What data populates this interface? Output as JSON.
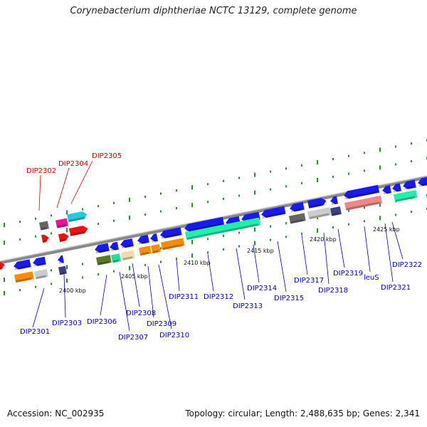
{
  "title": "Corynebacterium diphtheriae NCTC 13129, complete genome",
  "footer": {
    "accession": "Accession: NC_002935",
    "summary": "Topology: circular; Length: 2,488,635 bp; Genes: 2,341"
  },
  "ruler_labels": [
    "2400 kbp",
    "2405 kbp",
    "2410 kbp",
    "2415 kbp",
    "2420 kbp",
    "2425 kbp"
  ],
  "colors": {
    "backbone": "#888888",
    "ticks": "#2e8b2e",
    "label_blue": "#0000bb",
    "label_red": "#cc0000",
    "gene_blue": "#1a1aee",
    "gene_red": "#ee1111"
  },
  "genes_labeled": [
    {
      "name": "DIP2301",
      "color_group": "blue"
    },
    {
      "name": "DIP2302",
      "color_group": "red"
    },
    {
      "name": "DIP2303",
      "color_group": "blue"
    },
    {
      "name": "DIP2304",
      "color_group": "red"
    },
    {
      "name": "DIP2305",
      "color_group": "red"
    },
    {
      "name": "DIP2306",
      "color_group": "blue"
    },
    {
      "name": "DIP2307",
      "color_group": "blue"
    },
    {
      "name": "DIP2308",
      "color_group": "blue"
    },
    {
      "name": "DIP2309",
      "color_group": "blue"
    },
    {
      "name": "DIP2310",
      "color_group": "blue"
    },
    {
      "name": "DIP2311",
      "color_group": "blue"
    },
    {
      "name": "DIP2312",
      "color_group": "blue"
    },
    {
      "name": "DIP2313",
      "color_group": "blue"
    },
    {
      "name": "DIP2314",
      "color_group": "blue"
    },
    {
      "name": "DIP2315",
      "color_group": "blue"
    },
    {
      "name": "DIP2317",
      "color_group": "blue"
    },
    {
      "name": "DIP2318",
      "color_group": "blue"
    },
    {
      "name": "DIP2319",
      "color_group": "blue"
    },
    {
      "name": "leuS",
      "color_group": "blue"
    },
    {
      "name": "DIP2321",
      "color_group": "blue"
    },
    {
      "name": "DIP2322",
      "color_group": "blue"
    }
  ]
}
